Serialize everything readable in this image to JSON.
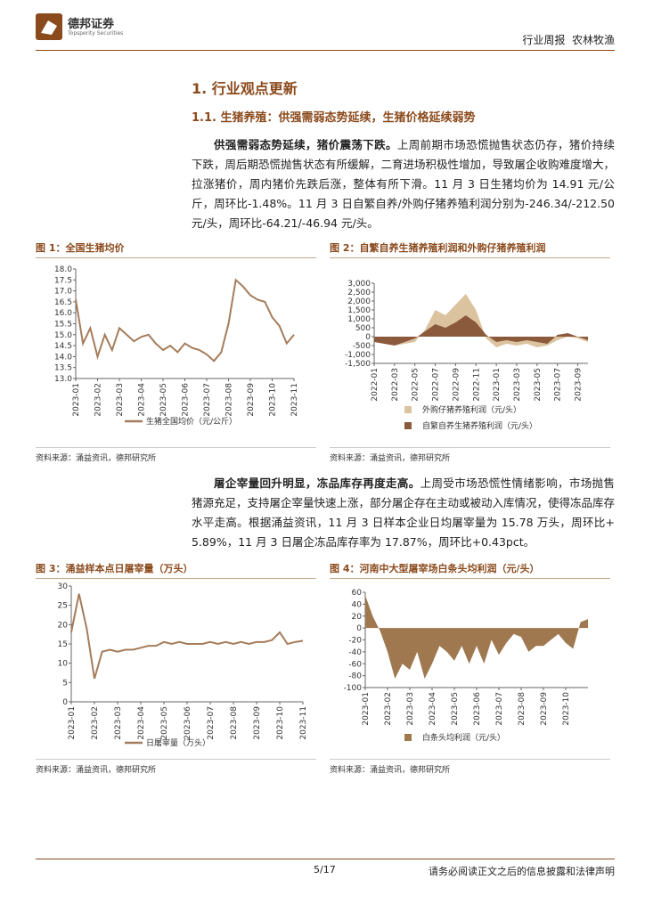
{
  "header": {
    "logo": "德邦证券",
    "logo_en": "Topsperity Securities",
    "right": "行业周报  农林牧渔"
  },
  "section_title": "1. 行业观点更新",
  "subsection_title": "1.1. 生猪养殖：供强需弱态势延续，生猪价格延续弱势",
  "paragraphs": [
    {
      "lead": "供强需弱态势延续，猪价震荡下跌。",
      "text": "上周前期市场恐慌抛售状态仍存，猪价持续下跌，周后期恐慌抛售状态有所缓解，二育进场积极性增加，导致屠企收购难度增大，拉涨猪价，周内猪价先跌后涨，整体有所下滑。11 月 3 日生猪均价为 14.91 元/公斤，周环比-1.48%。11 月 3 日自繁自养/外购仔猪养殖利润分别为-246.34/-212.50 元/头，周环比-64.21/-46.94 元/头。"
    },
    {
      "lead": "屠企宰量回升明显，冻品库存再度走高。",
      "text": "上周受市场恐慌性情绪影响，市场抛售猪源充足，支持屠企宰量快速上涨，部分屠企存在主动或被动入库情况，使得冻品库存水平走高。根据涌益资讯，11 月 3 日样本企业日均屠宰量为 15.78 万头，周环比+ 5.89%，11 月 3 日屠企冻品库存率为 17.87%，周环比+0.43pct。"
    }
  ],
  "chart_data": [
    {
      "type": "line",
      "title": "图 1：全国生猪均价",
      "source": "资料来源：涌益资讯，德邦研究所",
      "categories": [
        "2023-01",
        null,
        null,
        "2023-02",
        null,
        null,
        "2023-03",
        null,
        null,
        "2023-04",
        null,
        null,
        "2023-05",
        null,
        null,
        "2023-06",
        null,
        null,
        "2023-07",
        null,
        null,
        "2023-08",
        null,
        null,
        "2023-09",
        null,
        null,
        "2023-10",
        null,
        null,
        "2023-11"
      ],
      "series": [
        {
          "name": "生猪全国均价（元/公斤）",
          "color": "#a57c5b",
          "values": [
            16.6,
            14.6,
            15.3,
            14.0,
            15.0,
            14.3,
            15.3,
            15.0,
            14.7,
            14.9,
            15.0,
            14.6,
            14.3,
            14.5,
            14.2,
            14.6,
            14.4,
            14.3,
            14.1,
            13.8,
            14.2,
            15.5,
            17.5,
            17.2,
            16.8,
            16.6,
            16.5,
            15.8,
            15.4,
            14.6,
            15.0
          ]
        }
      ],
      "ylim": [
        13,
        18
      ],
      "yticks": [
        {
          "value": 13,
          "label": "13.0"
        },
        13.5,
        {
          "value": 14,
          "label": "14.0"
        },
        14.5,
        {
          "value": 15,
          "label": "15.0"
        },
        15.5,
        {
          "value": 16,
          "label": "16.0"
        },
        16.5,
        {
          "value": 17,
          "label": "17.0"
        },
        17.5,
        {
          "value": 18,
          "label": "18.0"
        }
      ]
    },
    {
      "type": "area",
      "title": "图 2：自繁自养生猪养殖利润和外购仔猪养殖利润",
      "source": "资料来源：涌益资讯，德邦研究所",
      "categories": [
        "2022-01",
        null,
        "2022-03",
        null,
        "2022-05",
        null,
        "2022-07",
        null,
        "2022-09",
        null,
        "2022-11",
        null,
        "2023-01",
        null,
        "2023-03",
        null,
        "2023-05",
        null,
        "2023-07",
        null,
        "2023-09",
        null
      ],
      "series": [
        {
          "name": "外购仔猪养殖利润（元/头）",
          "color": "#dcc3a0",
          "values": [
            -200,
            -300,
            -500,
            -400,
            -300,
            400,
            1500,
            1200,
            1800,
            2400,
            1500,
            -100,
            -600,
            -400,
            -500,
            -400,
            -600,
            -500,
            -200,
            0,
            -100,
            -300
          ]
        },
        {
          "name": "自繁自养生猪养殖利润（元/头）",
          "color": "#8b5a3c",
          "values": [
            -300,
            -400,
            -500,
            -300,
            -100,
            300,
            700,
            500,
            800,
            1200,
            800,
            100,
            -300,
            -200,
            -300,
            -200,
            -300,
            -400,
            100,
            200,
            0,
            -200
          ]
        }
      ],
      "ylim": [
        -1500,
        3000
      ],
      "yticks": [
        {
          "value": -1500,
          "label": "-1,500"
        },
        {
          "value": -1000,
          "label": "-1,000"
        },
        -500,
        0,
        500,
        {
          "value": 1000,
          "label": "1,000"
        },
        {
          "value": 1500,
          "label": "1,500"
        },
        {
          "value": 2000,
          "label": "2,000"
        },
        {
          "value": 2500,
          "label": "2,500"
        },
        {
          "value": 3000,
          "label": "3,000"
        }
      ]
    },
    {
      "type": "line",
      "title": "图 3：涌益样本点日屠宰量（万头）",
      "source": "资料来源：涌益资讯，德邦研究所",
      "categories": [
        "2023-01",
        null,
        null,
        "2023-02",
        null,
        null,
        "2023-03",
        null,
        null,
        "2023-04",
        null,
        null,
        "2023-05",
        null,
        null,
        "2023-06",
        null,
        null,
        "2023-07",
        null,
        null,
        "2023-08",
        null,
        null,
        "2023-09",
        null,
        null,
        "2023-10",
        null,
        null,
        "2023-11"
      ],
      "series": [
        {
          "name": "日屠宰量（万头）",
          "color": "#a57c5b",
          "values": [
            18,
            28,
            19,
            6,
            13,
            13.5,
            13,
            13.5,
            13.5,
            14,
            14.5,
            14.5,
            15.5,
            15,
            15.5,
            15,
            15,
            15,
            15.5,
            15,
            15.5,
            15,
            15.5,
            15,
            15.5,
            15.5,
            16,
            18,
            15,
            15.5,
            15.8
          ]
        }
      ],
      "ylim": [
        0,
        30
      ],
      "yticks": [
        0,
        5,
        10,
        15,
        20,
        25,
        30
      ]
    },
    {
      "type": "area",
      "title": "图 4：河南中大型屠宰场白条头均利润（元/头）",
      "source": "资料来源：涌益资讯，德邦研究所",
      "categories": [
        "2023-01",
        null,
        null,
        "2023-02",
        null,
        null,
        "2023-03",
        null,
        null,
        "2023-04",
        null,
        null,
        "2023-05",
        null,
        null,
        "2023-06",
        null,
        null,
        "2023-07",
        null,
        null,
        "2023-08",
        null,
        null,
        "2023-09",
        null,
        null,
        "2023-10",
        null,
        null,
        null
      ],
      "series": [
        {
          "name": "白条头均利润（元/头）",
          "color": "#a07850",
          "values": [
            55,
            20,
            -5,
            -40,
            -85,
            -60,
            -70,
            -40,
            -85,
            -60,
            -30,
            -40,
            -55,
            -30,
            -60,
            -30,
            -60,
            -20,
            -45,
            -25,
            -10,
            -15,
            -40,
            -30,
            -30,
            -20,
            -10,
            -25,
            -35,
            10,
            15
          ]
        }
      ],
      "ylim": [
        -100,
        60
      ],
      "yticks": [
        -100,
        -80,
        -60,
        -40,
        -20,
        0,
        20,
        40,
        60
      ]
    }
  ],
  "footer": {
    "page": "5/17",
    "disclaimer": "请务必阅读正文之后的信息披露和法律声明"
  }
}
